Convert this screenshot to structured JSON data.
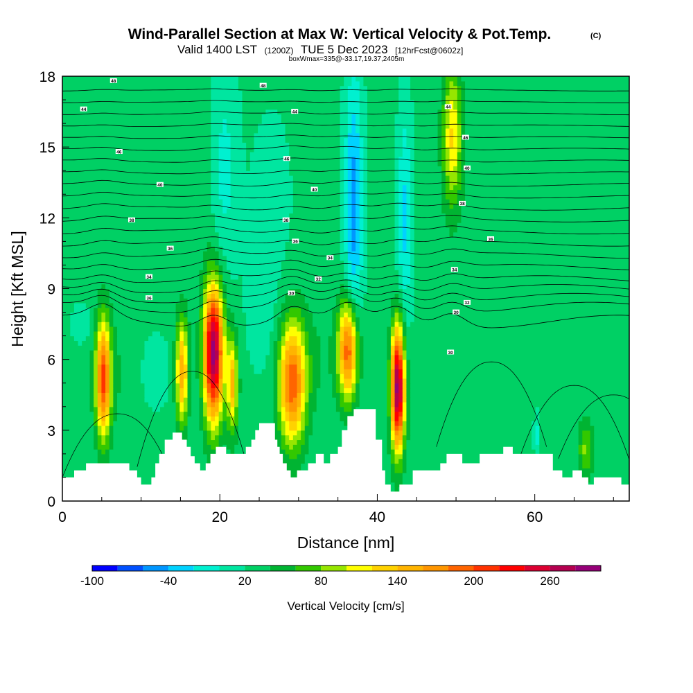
{
  "header": {
    "title": "Wind-Parallel Section at Max W: Vertical Velocity & Pot.Temp.",
    "copyright": "(C)",
    "valid_prefix": "Valid 1400 LST",
    "valid_utc": "(1200Z)",
    "valid_date": "TUE 5 Dec 2023",
    "forecast": "[12hrFcst@0602z]",
    "box_info": "boxWmax=335@-33.17,19.37,2405m"
  },
  "chart_data": {
    "type": "heatmap",
    "xlabel": "Distance [nm]",
    "ylabel": "Height [Kft MSL]",
    "xlim": [
      0,
      72
    ],
    "ylim": [
      0,
      18
    ],
    "x_ticks": [
      0,
      20,
      40,
      60
    ],
    "y_ticks": [
      0,
      3,
      6,
      9,
      12,
      15,
      18
    ],
    "background_w": 25,
    "terrain": [
      [
        0,
        1.0
      ],
      [
        1.5,
        1.0
      ],
      [
        1.5,
        1.3
      ],
      [
        3,
        1.3
      ],
      [
        3,
        1.6
      ],
      [
        8.5,
        1.6
      ],
      [
        8.5,
        1.3
      ],
      [
        9.5,
        1.3
      ],
      [
        9.5,
        1.0
      ],
      [
        10,
        1.0
      ],
      [
        10,
        0.7
      ],
      [
        11.3,
        0.7
      ],
      [
        11.3,
        1.0
      ],
      [
        11.8,
        1.0
      ],
      [
        11.8,
        1.6
      ],
      [
        12.3,
        1.6
      ],
      [
        12.3,
        2.0
      ],
      [
        13,
        2.0
      ],
      [
        13,
        2.6
      ],
      [
        14,
        2.6
      ],
      [
        14,
        2.9
      ],
      [
        15.2,
        2.9
      ],
      [
        15.2,
        2.6
      ],
      [
        15.8,
        2.6
      ],
      [
        15.8,
        2.3
      ],
      [
        16.3,
        2.3
      ],
      [
        16.3,
        1.9
      ],
      [
        16.8,
        1.9
      ],
      [
        16.8,
        1.6
      ],
      [
        17.5,
        1.6
      ],
      [
        17.5,
        1.3
      ],
      [
        18.2,
        1.3
      ],
      [
        18.2,
        1.6
      ],
      [
        18.8,
        1.6
      ],
      [
        18.8,
        2.0
      ],
      [
        19.5,
        2.0
      ],
      [
        19.5,
        2.3
      ],
      [
        20.8,
        2.3
      ],
      [
        20.8,
        2.0
      ],
      [
        23.3,
        2.0
      ],
      [
        23.3,
        2.3
      ],
      [
        24,
        2.3
      ],
      [
        24,
        2.6
      ],
      [
        24.5,
        2.6
      ],
      [
        24.5,
        3.0
      ],
      [
        25,
        3.0
      ],
      [
        25,
        3.3
      ],
      [
        27,
        3.3
      ],
      [
        27,
        2.6
      ],
      [
        27.3,
        2.6
      ],
      [
        27.3,
        2.3
      ],
      [
        27.6,
        2.3
      ],
      [
        27.6,
        2.0
      ],
      [
        28,
        2.0
      ],
      [
        28,
        1.6
      ],
      [
        28.5,
        1.6
      ],
      [
        28.5,
        1.3
      ],
      [
        29,
        1.3
      ],
      [
        29,
        1.0
      ],
      [
        29.8,
        1.0
      ],
      [
        29.8,
        1.3
      ],
      [
        31.2,
        1.3
      ],
      [
        31.2,
        1.6
      ],
      [
        32.2,
        1.6
      ],
      [
        32.2,
        2.0
      ],
      [
        33.2,
        2.0
      ],
      [
        33.2,
        1.6
      ],
      [
        34,
        1.6
      ],
      [
        34,
        2.0
      ],
      [
        35,
        2.0
      ],
      [
        35,
        2.3
      ],
      [
        35.5,
        2.3
      ],
      [
        35.5,
        3.0
      ],
      [
        36.2,
        3.0
      ],
      [
        36.2,
        3.6
      ],
      [
        37,
        3.6
      ],
      [
        37,
        3.9
      ],
      [
        39.8,
        3.9
      ],
      [
        39.8,
        2.6
      ],
      [
        40.6,
        2.6
      ],
      [
        40.6,
        1.3
      ],
      [
        41,
        1.3
      ],
      [
        41,
        0.7
      ],
      [
        41.7,
        0.7
      ],
      [
        41.7,
        0.4
      ],
      [
        42.8,
        0.4
      ],
      [
        42.8,
        0.7
      ],
      [
        44.5,
        0.7
      ],
      [
        44.5,
        1.3
      ],
      [
        48,
        1.3
      ],
      [
        48,
        1.6
      ],
      [
        48.8,
        1.6
      ],
      [
        48.8,
        2.0
      ],
      [
        50.8,
        2.0
      ],
      [
        50.8,
        1.6
      ],
      [
        53,
        1.6
      ],
      [
        53,
        2.0
      ],
      [
        56,
        2.0
      ],
      [
        56,
        2.3
      ],
      [
        57.2,
        2.3
      ],
      [
        57.2,
        2.0
      ],
      [
        62.3,
        2.0
      ],
      [
        62.3,
        1.3
      ],
      [
        63.5,
        1.3
      ],
      [
        63.5,
        1.0
      ],
      [
        64.8,
        1.0
      ],
      [
        64.8,
        1.3
      ],
      [
        66,
        1.3
      ],
      [
        66,
        1.0
      ],
      [
        66.8,
        1.0
      ],
      [
        66.8,
        0.7
      ],
      [
        67.5,
        0.7
      ],
      [
        67.5,
        1.0
      ],
      [
        71,
        1.0
      ],
      [
        71,
        0.7
      ],
      [
        72,
        0.7
      ]
    ],
    "w_features": [
      {
        "x": 5.2,
        "y": 5.2,
        "sx": 0.95,
        "sy": 2.5,
        "w": 175
      },
      {
        "x": 15.2,
        "y": 5.5,
        "sx": 0.8,
        "sy": 2.2,
        "w": 130
      },
      {
        "x": 19.2,
        "y": 6.3,
        "sx": 1.25,
        "sy": 2.9,
        "w": 265
      },
      {
        "x": 21.6,
        "y": 5.0,
        "sx": 0.7,
        "sy": 2.0,
        "w": 120
      },
      {
        "x": 29.2,
        "y": 5.0,
        "sx": 1.7,
        "sy": 2.6,
        "w": 165
      },
      {
        "x": 36.3,
        "y": 6.4,
        "sx": 1.25,
        "sy": 2.1,
        "w": 175
      },
      {
        "x": 42.6,
        "y": 4.8,
        "sx": 0.85,
        "sy": 2.6,
        "w": 260
      },
      {
        "x": 49.5,
        "y": 15.5,
        "sx": 1.2,
        "sy": 3.0,
        "w": 95
      },
      {
        "x": 66.5,
        "y": 2.2,
        "sx": 1.0,
        "sy": 1.2,
        "w": 60
      },
      {
        "x": 7.5,
        "y": 5.5,
        "sx": 4.0,
        "sy": 2.5,
        "w": 15
      },
      {
        "x": 32.0,
        "y": 6.0,
        "sx": 3.5,
        "sy": 2.5,
        "w": 15
      },
      {
        "x": 45.0,
        "y": 4.5,
        "sx": 2.5,
        "sy": 2.0,
        "w": 12
      },
      {
        "x": 37.0,
        "y": 12.5,
        "sx": 1.1,
        "sy": 5.5,
        "w": -75
      },
      {
        "x": 43.5,
        "y": 12.0,
        "sx": 0.9,
        "sy": 4.5,
        "w": -50
      },
      {
        "x": 20.5,
        "y": 14.0,
        "sx": 1.8,
        "sy": 4.5,
        "w": -35
      },
      {
        "x": 11.5,
        "y": 5.5,
        "sx": 2.0,
        "sy": 1.6,
        "w": -25
      },
      {
        "x": 25.5,
        "y": 8.0,
        "sx": 2.0,
        "sy": 2.5,
        "w": -18
      },
      {
        "x": 60.2,
        "y": 2.8,
        "sx": 0.3,
        "sy": 0.9,
        "w": -35
      },
      {
        "x": 26.5,
        "y": 13.0,
        "sx": 2.5,
        "sy": 3.5,
        "w": -15
      },
      {
        "x": 2.5,
        "y": 7.5,
        "sx": 1.5,
        "sy": 1.0,
        "w": -15
      },
      {
        "x": 16.0,
        "y": 14.0,
        "sx": 4.0,
        "sy": 4.0,
        "w": 15
      },
      {
        "x": 56.0,
        "y": 13.0,
        "sx": 6.0,
        "sy": 4.0,
        "w": 10
      }
    ],
    "theta_lines": [
      {
        "y": 7.6,
        "amp": 1.1
      },
      {
        "y": 8.2,
        "amp": 0.9
      },
      {
        "y": 8.6,
        "amp": 0.8
      },
      {
        "y": 9.0,
        "amp": 0.7
      },
      {
        "y": 9.4,
        "amp": 0.6
      },
      {
        "y": 9.9,
        "amp": 0.5
      },
      {
        "y": 10.4,
        "amp": 0.45
      },
      {
        "y": 10.9,
        "amp": 0.4
      },
      {
        "y": 11.4,
        "amp": 0.35
      },
      {
        "y": 11.9,
        "amp": 0.3
      },
      {
        "y": 12.4,
        "amp": 0.3
      },
      {
        "y": 12.9,
        "amp": 0.25
      },
      {
        "y": 13.4,
        "amp": 0.25
      },
      {
        "y": 13.9,
        "amp": 0.2
      },
      {
        "y": 14.4,
        "amp": 0.2
      },
      {
        "y": 14.9,
        "amp": 0.2
      },
      {
        "y": 15.4,
        "amp": 0.15
      },
      {
        "y": 15.9,
        "amp": 0.15
      },
      {
        "y": 16.4,
        "amp": 0.15
      },
      {
        "y": 16.9,
        "amp": 0.1
      },
      {
        "y": 17.4,
        "amp": 0.1
      }
    ],
    "contour_labels": [
      {
        "x": 6.5,
        "y": 17.8,
        "text": "48"
      },
      {
        "x": 25.5,
        "y": 17.6,
        "text": "48"
      },
      {
        "x": 2.7,
        "y": 16.6,
        "text": "44"
      },
      {
        "x": 29.5,
        "y": 16.5,
        "text": "44"
      },
      {
        "x": 49.0,
        "y": 16.7,
        "text": "44"
      },
      {
        "x": 7.2,
        "y": 14.8,
        "text": "46"
      },
      {
        "x": 51.2,
        "y": 15.4,
        "text": "46"
      },
      {
        "x": 28.5,
        "y": 14.5,
        "text": "46"
      },
      {
        "x": 12.4,
        "y": 13.4,
        "text": "40"
      },
      {
        "x": 32.0,
        "y": 13.2,
        "text": "40"
      },
      {
        "x": 51.4,
        "y": 14.1,
        "text": "40"
      },
      {
        "x": 8.8,
        "y": 11.9,
        "text": "38"
      },
      {
        "x": 28.4,
        "y": 11.9,
        "text": "38"
      },
      {
        "x": 50.8,
        "y": 12.6,
        "text": "38"
      },
      {
        "x": 13.7,
        "y": 10.7,
        "text": "36"
      },
      {
        "x": 29.6,
        "y": 11.0,
        "text": "36"
      },
      {
        "x": 54.4,
        "y": 11.1,
        "text": "36"
      },
      {
        "x": 11.0,
        "y": 9.5,
        "text": "34"
      },
      {
        "x": 34.0,
        "y": 10.3,
        "text": "34"
      },
      {
        "x": 49.8,
        "y": 9.8,
        "text": "34"
      },
      {
        "x": 32.5,
        "y": 9.4,
        "text": "32"
      },
      {
        "x": 51.4,
        "y": 8.4,
        "text": "32"
      },
      {
        "x": 11.0,
        "y": 8.6,
        "text": "36"
      },
      {
        "x": 29.1,
        "y": 8.8,
        "text": "30"
      },
      {
        "x": 50.0,
        "y": 8.0,
        "text": "30"
      },
      {
        "x": 49.3,
        "y": 6.3,
        "text": "30"
      }
    ],
    "colorbar": {
      "label": "Vertical Velocity [cm/s]",
      "min": -100,
      "max": 300,
      "step": 20,
      "tick_values": [
        -100,
        -40,
        20,
        80,
        140,
        200,
        260
      ],
      "tick_labels": [
        "-100",
        "-40",
        "20",
        "80",
        "140",
        "200",
        "260"
      ],
      "colors": [
        "#0000ff",
        "#0050ff",
        "#0096ff",
        "#00d2ff",
        "#00f0d0",
        "#00e6a0",
        "#00d064",
        "#00b432",
        "#32c800",
        "#96e600",
        "#ffff00",
        "#ffd200",
        "#ffb400",
        "#ff9600",
        "#ff6400",
        "#ff3200",
        "#ff0000",
        "#dc0032",
        "#b40050",
        "#960078"
      ]
    }
  }
}
